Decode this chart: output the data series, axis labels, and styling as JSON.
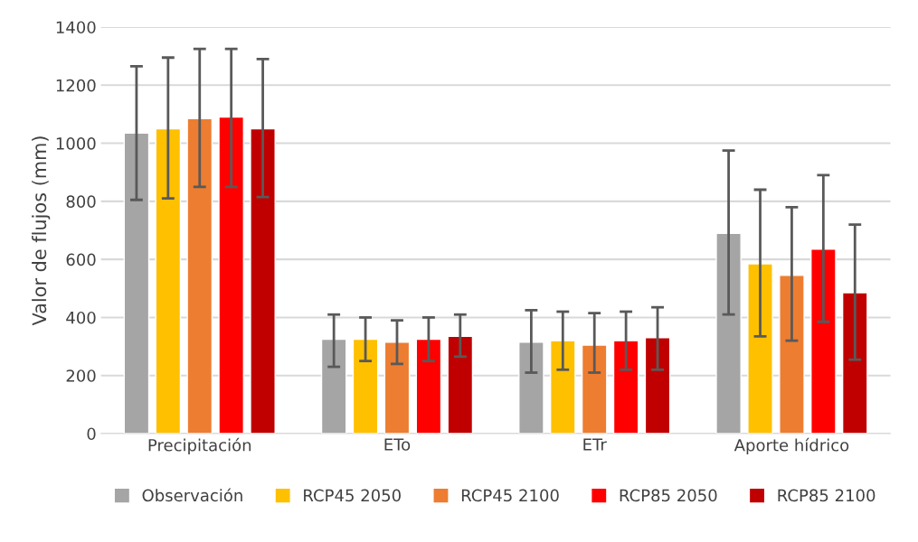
{
  "chart_data": {
    "type": "bar",
    "ylabel": "Valor de flujos (mm)",
    "categories": [
      "Precipitación",
      "ETo",
      "ETr",
      "Aporte hídrico"
    ],
    "series": [
      {
        "name": "Observación",
        "color": "#a5a5a5",
        "values": [
          1035,
          325,
          315,
          690
        ],
        "errors": [
          [
            805,
            1265
          ],
          [
            230,
            410
          ],
          [
            210,
            425
          ],
          [
            410,
            975
          ]
        ]
      },
      {
        "name": "RCP45 2050",
        "color": "#ffc000",
        "values": [
          1050,
          325,
          320,
          585
        ],
        "errors": [
          [
            810,
            1295
          ],
          [
            250,
            400
          ],
          [
            220,
            420
          ],
          [
            335,
            840
          ]
        ]
      },
      {
        "name": "RCP45 2100",
        "color": "#ed7d31",
        "values": [
          1085,
          315,
          305,
          545
        ],
        "errors": [
          [
            850,
            1325
          ],
          [
            240,
            390
          ],
          [
            210,
            415
          ],
          [
            320,
            780
          ]
        ]
      },
      {
        "name": "RCP85 2050",
        "color": "#ff0000",
        "values": [
          1090,
          325,
          320,
          635
        ],
        "errors": [
          [
            850,
            1325
          ],
          [
            250,
            400
          ],
          [
            220,
            420
          ],
          [
            385,
            890
          ]
        ]
      },
      {
        "name": "RCP85 2100",
        "color": "#c00000",
        "values": [
          1050,
          335,
          330,
          485
        ],
        "errors": [
          [
            815,
            1290
          ],
          [
            265,
            410
          ],
          [
            220,
            435
          ],
          [
            255,
            720
          ]
        ]
      }
    ],
    "ylim": [
      0,
      1400
    ],
    "yticks": [
      0,
      200,
      400,
      600,
      800,
      1000,
      1200,
      1400
    ],
    "grid": "y",
    "legend": "bottom"
  }
}
